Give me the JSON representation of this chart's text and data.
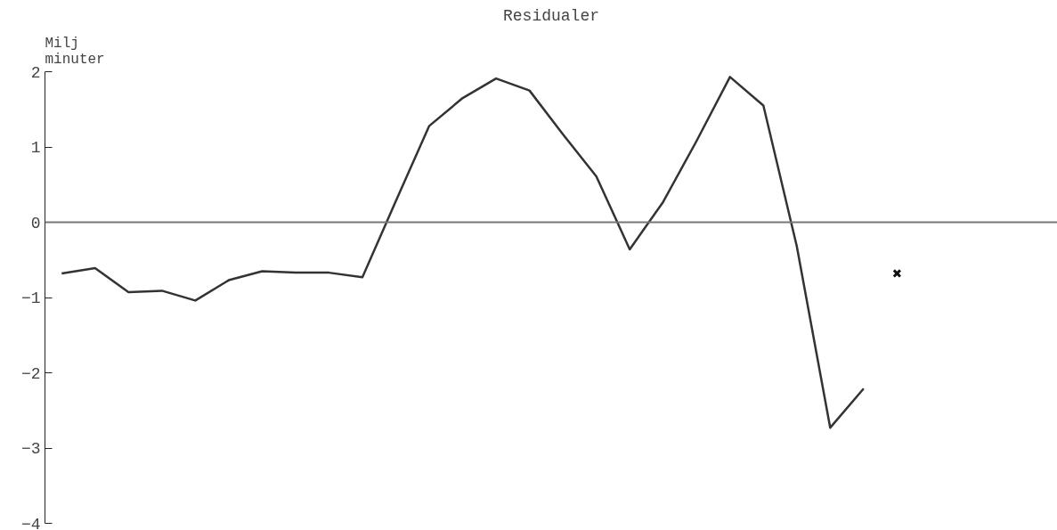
{
  "chart_data": {
    "type": "line",
    "title": "Residualer",
    "ylabel": "Milj\nminuter",
    "categories": [
      null,
      null,
      null,
      null,
      null,
      null,
      null,
      null,
      null,
      null,
      null,
      null,
      null,
      null,
      null,
      null,
      null,
      null,
      null,
      null,
      null,
      null,
      null,
      null,
      null,
      null,
      null,
      null,
      null,
      null
    ],
    "series": [
      {
        "color": "#333333",
        "values": [
          -0.68,
          -0.61,
          -0.93,
          -0.91,
          -1.04,
          -0.77,
          -0.65,
          -0.67,
          -0.67,
          -0.73,
          0.28,
          1.28,
          1.65,
          1.91,
          1.75,
          1.17,
          0.61,
          -0.36,
          0.27,
          1.08,
          1.93,
          1.55,
          -0.32,
          -2.73,
          -2.21,
          null,
          null,
          null,
          null,
          null
        ]
      },
      {
        "type": "scatter",
        "marker": "cross",
        "color": "#111111",
        "values": [
          null,
          null,
          null,
          null,
          null,
          null,
          null,
          null,
          null,
          null,
          null,
          null,
          null,
          null,
          null,
          null,
          null,
          null,
          null,
          null,
          null,
          null,
          null,
          null,
          null,
          -0.68,
          null,
          null,
          null,
          null
        ]
      }
    ],
    "ylim": [
      -4,
      2
    ],
    "yticks": [
      -4,
      -3,
      -2,
      -1,
      0,
      1,
      2
    ],
    "grid": false,
    "tick_labels": "y",
    "ref_lines": [
      {
        "axis": "y",
        "value": 0,
        "color": "#777777"
      }
    ]
  }
}
